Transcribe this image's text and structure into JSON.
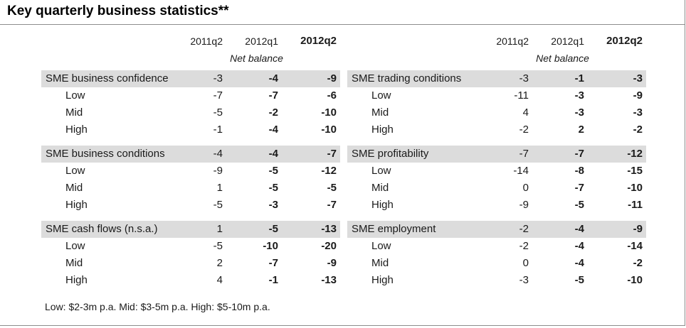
{
  "title": "Key quarterly business statistics**",
  "columns": [
    "2011q2",
    "2012q1",
    "2012q2"
  ],
  "subheader": "Net balance",
  "left_groups": [
    {
      "label": "SME business confidence",
      "values": [
        "-3",
        "-4",
        "-9"
      ],
      "rows": [
        {
          "label": "Low",
          "values": [
            "-7",
            "-7",
            "-6"
          ]
        },
        {
          "label": "Mid",
          "values": [
            "-5",
            "-2",
            "-10"
          ]
        },
        {
          "label": "High",
          "values": [
            "-1",
            "-4",
            "-10"
          ]
        }
      ]
    },
    {
      "label": "SME business conditions",
      "values": [
        "-4",
        "-4",
        "-7"
      ],
      "rows": [
        {
          "label": "Low",
          "values": [
            "-9",
            "-5",
            "-12"
          ]
        },
        {
          "label": "Mid",
          "values": [
            "1",
            "-5",
            "-5"
          ]
        },
        {
          "label": "High",
          "values": [
            "-5",
            "-3",
            "-7"
          ]
        }
      ]
    },
    {
      "label": "SME cash flows (n.s.a.)",
      "values": [
        "1",
        "-5",
        "-13"
      ],
      "rows": [
        {
          "label": "Low",
          "values": [
            "-5",
            "-10",
            "-20"
          ]
        },
        {
          "label": "Mid",
          "values": [
            "2",
            "-7",
            "-9"
          ]
        },
        {
          "label": "High",
          "values": [
            "4",
            "-1",
            "-13"
          ]
        }
      ]
    }
  ],
  "right_groups": [
    {
      "label": "SME trading conditions",
      "values": [
        "-3",
        "-1",
        "-3"
      ],
      "rows": [
        {
          "label": "Low",
          "values": [
            "-11",
            "-3",
            "-9"
          ]
        },
        {
          "label": "Mid",
          "values": [
            "4",
            "-3",
            "-3"
          ]
        },
        {
          "label": "High",
          "values": [
            "-2",
            "2",
            "-2"
          ]
        }
      ]
    },
    {
      "label": "SME profitability",
      "values": [
        "-7",
        "-7",
        "-12"
      ],
      "rows": [
        {
          "label": "Low",
          "values": [
            "-14",
            "-8",
            "-15"
          ]
        },
        {
          "label": "Mid",
          "values": [
            "0",
            "-7",
            "-10"
          ]
        },
        {
          "label": "High",
          "values": [
            "-9",
            "-5",
            "-11"
          ]
        }
      ]
    },
    {
      "label": "SME employment",
      "values": [
        "-2",
        "-4",
        "-9"
      ],
      "rows": [
        {
          "label": "Low",
          "values": [
            "-2",
            "-4",
            "-14"
          ]
        },
        {
          "label": "Mid",
          "values": [
            "0",
            "-4",
            "-2"
          ]
        },
        {
          "label": "High",
          "values": [
            "-3",
            "-5",
            "-10"
          ]
        }
      ]
    }
  ],
  "footnote": "Low: $2-3m p.a. Mid: $3-5m p.a. High: $5-10m p.a."
}
